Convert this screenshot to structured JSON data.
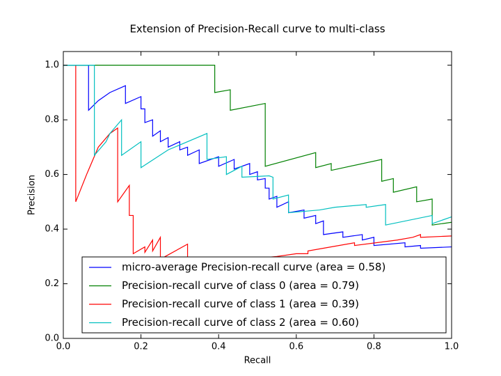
{
  "chart_data": {
    "type": "line",
    "title": "Extension of Precision-Recall curve to multi-class",
    "x_label": "Recall",
    "y_label": "Precision",
    "xlim": [
      0,
      1
    ],
    "ylim": [
      0,
      1.05
    ],
    "xticks": [
      {
        "value": 0,
        "label": "0.0"
      },
      0.2,
      0.4,
      0.6,
      0.8,
      {
        "value": 1,
        "label": "1.0"
      }
    ],
    "yticks": [
      {
        "value": 0,
        "label": "0.0"
      },
      0.2,
      0.4,
      0.6,
      0.8,
      {
        "value": 1,
        "label": "1.0"
      }
    ],
    "legend": "lower right",
    "series": [
      {
        "name": "micro-average Precision-recall curve (area = 0.58)",
        "color": "#0000ff",
        "x": [
          0,
          0.065,
          0.065,
          0.09,
          0.12,
          0.16,
          0.16,
          0.2,
          0.2,
          0.21,
          0.21,
          0.23,
          0.23,
          0.25,
          0.25,
          0.27,
          0.27,
          0.3,
          0.3,
          0.32,
          0.32,
          0.35,
          0.35,
          0.4,
          0.4,
          0.44,
          0.44,
          0.48,
          0.48,
          0.5,
          0.5,
          0.52,
          0.52,
          0.53,
          0.53,
          0.55,
          0.55,
          0.58,
          0.58,
          0.62,
          0.62,
          0.65,
          0.65,
          0.67,
          0.67,
          0.72,
          0.72,
          0.77,
          0.77,
          0.8,
          0.8,
          0.88,
          0.88,
          0.92,
          0.92,
          1
        ],
        "values": [
          1,
          1,
          0.835,
          0.87,
          0.9,
          0.925,
          0.86,
          0.885,
          0.84,
          0.84,
          0.79,
          0.8,
          0.74,
          0.76,
          0.72,
          0.735,
          0.7,
          0.72,
          0.69,
          0.7,
          0.67,
          0.69,
          0.64,
          0.665,
          0.63,
          0.655,
          0.62,
          0.64,
          0.6,
          0.61,
          0.58,
          0.585,
          0.55,
          0.55,
          0.51,
          0.52,
          0.48,
          0.5,
          0.46,
          0.47,
          0.44,
          0.45,
          0.42,
          0.43,
          0.38,
          0.39,
          0.37,
          0.38,
          0.36,
          0.37,
          0.34,
          0.35,
          0.335,
          0.34,
          0.33,
          0.335
        ]
      },
      {
        "name": "Precision-recall curve of class 0 (area = 0.79)",
        "color": "#008000",
        "x": [
          0,
          0.39,
          0.39,
          0.43,
          0.43,
          0.52,
          0.52,
          0.65,
          0.65,
          0.69,
          0.69,
          0.82,
          0.82,
          0.85,
          0.85,
          0.91,
          0.91,
          0.95,
          0.95,
          1
        ],
        "values": [
          1,
          1,
          0.9,
          0.91,
          0.835,
          0.86,
          0.63,
          0.68,
          0.625,
          0.64,
          0.615,
          0.655,
          0.575,
          0.585,
          0.535,
          0.555,
          0.5,
          0.51,
          0.415,
          0.425
        ]
      },
      {
        "name": "Precision-recall curve of class 1 (area = 0.39)",
        "color": "#ff0000",
        "x": [
          0.032,
          0.032,
          0.06,
          0.09,
          0.12,
          0.14,
          0.14,
          0.17,
          0.17,
          0.18,
          0.18,
          0.21,
          0.21,
          0.23,
          0.23,
          0.25,
          0.25,
          0.32,
          0.32,
          0.44,
          0.55,
          0.6,
          0.63,
          0.63,
          0.67,
          0.75,
          0.75,
          0.86,
          0.9,
          0.92,
          0.92,
          1
        ],
        "values": [
          1,
          0.5,
          0.6,
          0.7,
          0.75,
          0.77,
          0.5,
          0.56,
          0.45,
          0.45,
          0.31,
          0.335,
          0.315,
          0.36,
          0.32,
          0.37,
          0.29,
          0.345,
          0.27,
          0.285,
          0.3,
          0.31,
          0.31,
          0.32,
          0.33,
          0.35,
          0.34,
          0.36,
          0.37,
          0.38,
          0.37,
          0.375
        ]
      },
      {
        "name": "Precision-recall curve of class 2 (area = 0.60)",
        "color": "#00bfbf",
        "x": [
          0,
          0.08,
          0.08,
          0.11,
          0.12,
          0.15,
          0.15,
          0.2,
          0.2,
          0.27,
          0.37,
          0.37,
          0.42,
          0.42,
          0.46,
          0.46,
          0.53,
          0.54,
          0.54,
          0.58,
          0.58,
          0.66,
          0.7,
          0.78,
          0.78,
          0.83,
          0.83,
          0.95,
          0.95,
          1
        ],
        "values": [
          1,
          1,
          0.67,
          0.72,
          0.75,
          0.8,
          0.67,
          0.72,
          0.625,
          0.69,
          0.75,
          0.655,
          0.665,
          0.6,
          0.63,
          0.59,
          0.595,
          0.59,
          0.51,
          0.525,
          0.46,
          0.47,
          0.48,
          0.49,
          0.48,
          0.49,
          0.415,
          0.45,
          0.42,
          0.445
        ]
      }
    ]
  }
}
